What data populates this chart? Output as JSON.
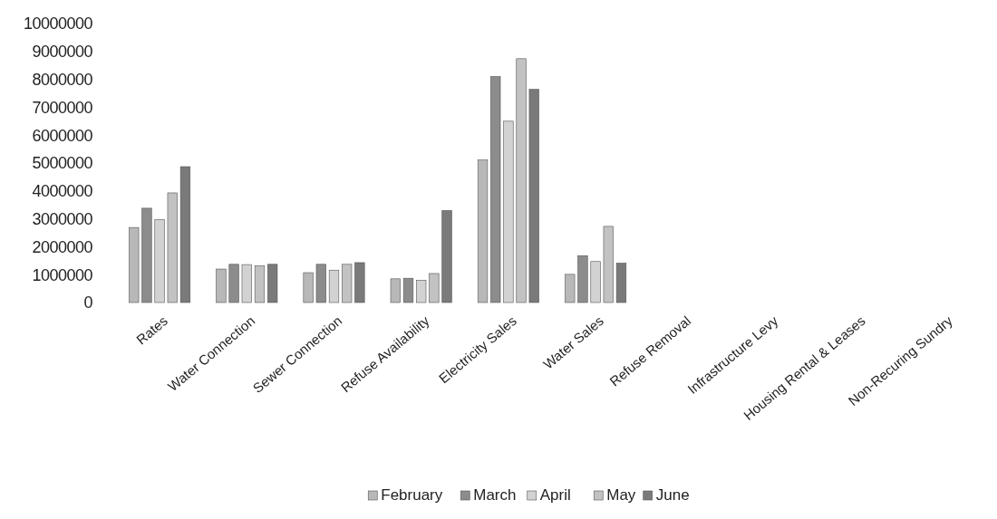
{
  "chart_data": {
    "type": "bar",
    "categories": [
      "Rates",
      "Water Connection",
      "Sewer Connection",
      "Refuse Availability",
      "Electricity Sales",
      "Water Sales",
      "Refuse Removal",
      "Infrastructure Levy",
      "Housing Rental & Leases",
      "Non-Recuring Sundry"
    ],
    "series": [
      {
        "name": "February",
        "color": "#b8b8b8",
        "values": [
          2690000,
          1200000,
          1070000,
          850000,
          5110000,
          1010000,
          null,
          null,
          null,
          null
        ]
      },
      {
        "name": "March",
        "color": "#8c8c8c",
        "values": [
          3380000,
          1370000,
          1370000,
          870000,
          8100000,
          1680000,
          null,
          null,
          null,
          null
        ]
      },
      {
        "name": "April",
        "color": "#d2d2d2",
        "values": [
          2970000,
          1360000,
          1160000,
          800000,
          6500000,
          1470000,
          null,
          null,
          null,
          null
        ]
      },
      {
        "name": "May",
        "color": "#c2c2c2",
        "values": [
          3930000,
          1320000,
          1370000,
          1040000,
          8740000,
          2730000,
          null,
          null,
          null,
          null
        ]
      },
      {
        "name": "June",
        "color": "#7a7a7a",
        "values": [
          4870000,
          1370000,
          1430000,
          3300000,
          7640000,
          1410000,
          null,
          null,
          null,
          null
        ]
      }
    ],
    "ylim": [
      0,
      10000000
    ],
    "yticks": [
      0,
      1000000,
      2000000,
      3000000,
      4000000,
      5000000,
      6000000,
      7000000,
      8000000,
      9000000,
      10000000
    ],
    "grid": false,
    "legend": "bottom"
  }
}
